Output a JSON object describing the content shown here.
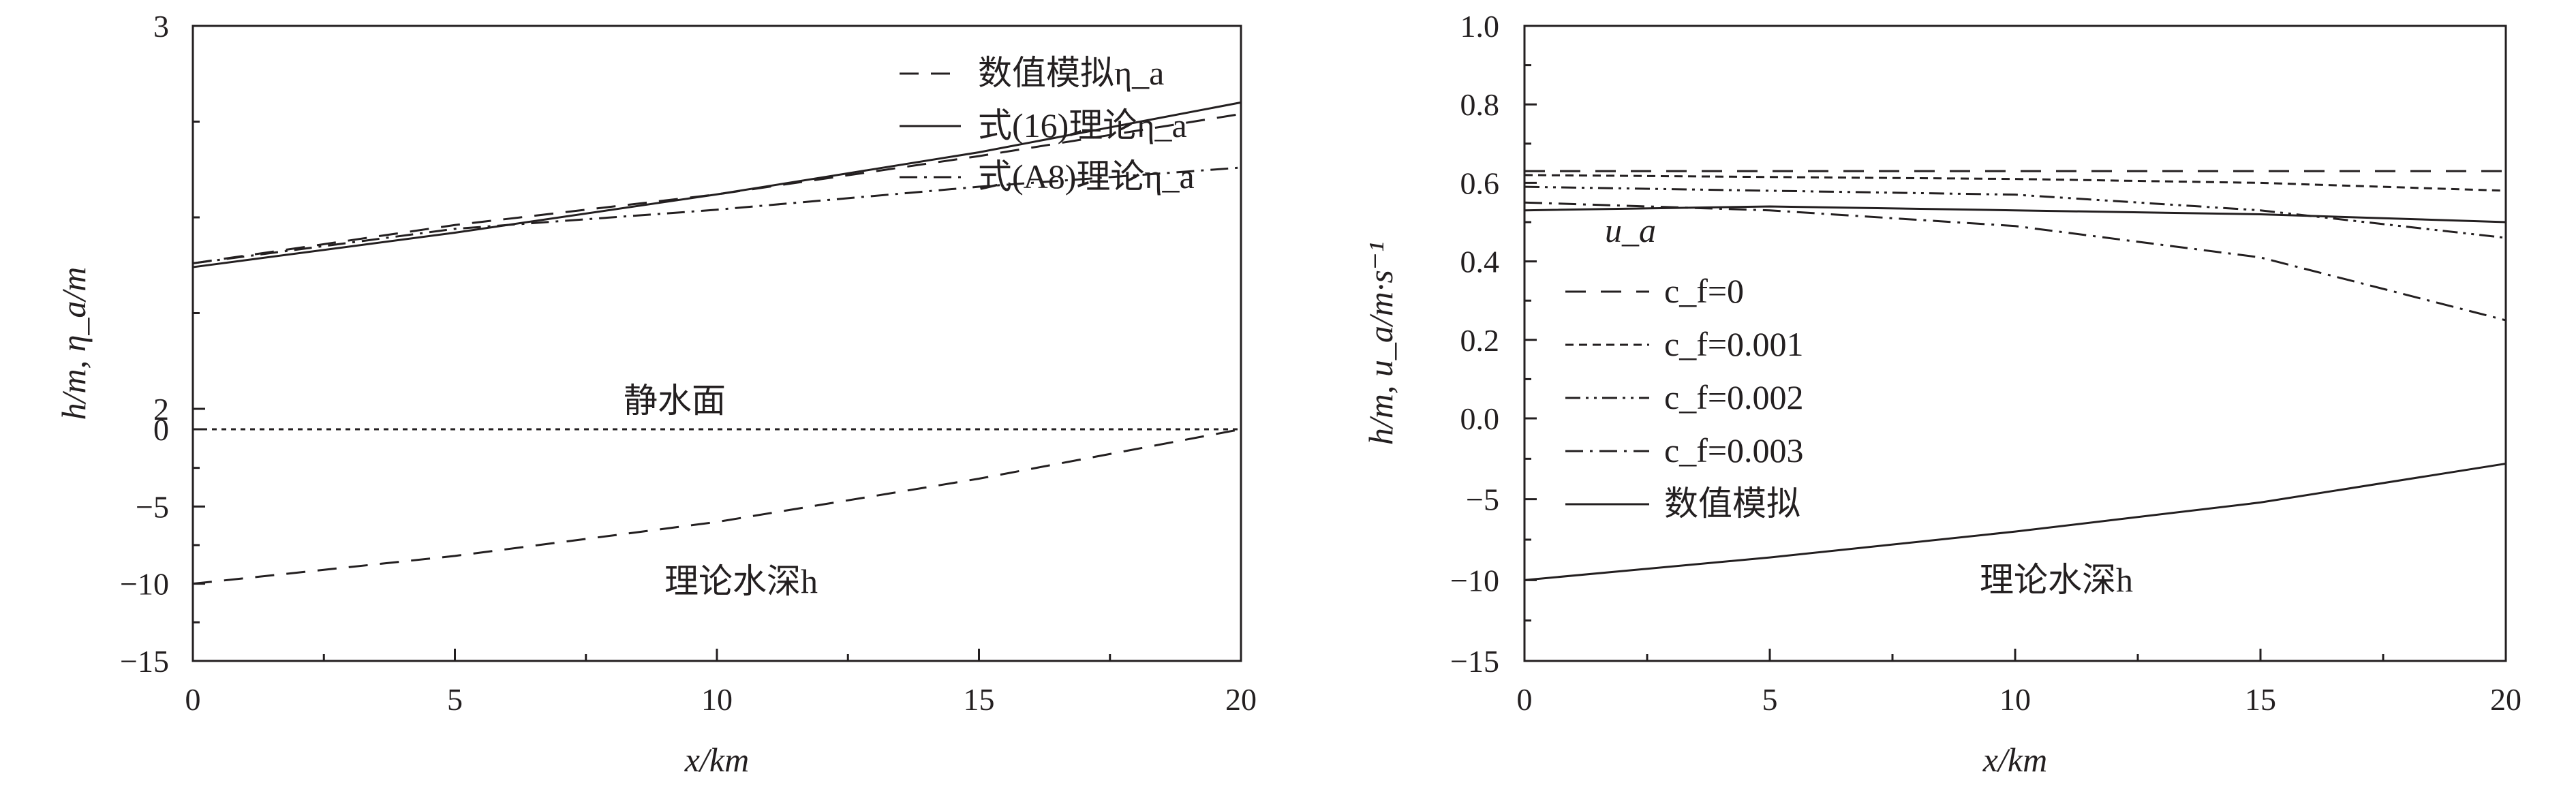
{
  "chart_data": [
    {
      "type": "line",
      "panel": "left",
      "xlabel": "x/km",
      "ylabel": "h/m, η_a/m",
      "xlim": [
        0,
        20
      ],
      "x_ticks": [
        "0",
        "5",
        "10",
        "15",
        "20"
      ],
      "y_ticks_lower": [
        "0",
        "−5",
        "−10",
        "−15"
      ],
      "y_ticks_upper": [
        "2",
        "3"
      ],
      "break": "y-axis broken: bottom section −15 to 0 (depth h), top section 2 to 3 (elevation η_a)",
      "legend_position": "top-right",
      "series": [
        {
          "name": "数值模拟η_a",
          "style": "dashed",
          "x": [
            0,
            5,
            10,
            15,
            20
          ],
          "values": [
            2.38,
            2.48,
            2.56,
            2.66,
            2.77
          ]
        },
        {
          "name": "式(16)理论η_a",
          "style": "solid",
          "x": [
            0,
            5,
            10,
            15,
            20
          ],
          "values": [
            2.37,
            2.46,
            2.56,
            2.67,
            2.8
          ]
        },
        {
          "name": "式(A8)理论η_a",
          "style": "dash-dot",
          "x": [
            0,
            5,
            10,
            15,
            20
          ],
          "values": [
            2.38,
            2.47,
            2.52,
            2.58,
            2.63
          ]
        }
      ],
      "depth_profile": {
        "label": "理论水深h",
        "style": "dashed",
        "x": [
          0,
          5,
          10,
          15,
          20
        ],
        "values": [
          -10.0,
          -8.2,
          -6.0,
          -3.2,
          0.0
        ]
      },
      "still_water": {
        "label": "静水面",
        "style": "dotted",
        "value": 0
      }
    },
    {
      "type": "line",
      "panel": "right",
      "xlabel": "x/km",
      "ylabel": "h/m, u_a/m·s⁻¹",
      "xlim": [
        0,
        20
      ],
      "x_ticks": [
        "0",
        "5",
        "10",
        "15",
        "20"
      ],
      "y_ticks_upper": [
        "1.0",
        "0.8",
        "0.6",
        "0.4",
        "0.2",
        "0.0"
      ],
      "y_ticks_lower": [
        "−5",
        "−10",
        "−15"
      ],
      "break": "y-axis broken: bottom section −15 to 0 (depth h), top section 0.0 to 1.0 (velocity u_a)",
      "annotation": "u_a",
      "legend_position": "middle-left",
      "series": [
        {
          "name": "c_f=0",
          "style": "long-dash",
          "x": [
            0,
            5,
            10,
            15,
            20
          ],
          "values": [
            0.63,
            0.63,
            0.63,
            0.63,
            0.63
          ]
        },
        {
          "name": "c_f=0.001",
          "style": "short-dash",
          "x": [
            0,
            5,
            10,
            15,
            20
          ],
          "values": [
            0.62,
            0.615,
            0.61,
            0.6,
            0.58
          ]
        },
        {
          "name": "c_f=0.002",
          "style": "dash-dot-dot",
          "x": [
            0,
            5,
            10,
            15,
            20
          ],
          "values": [
            0.59,
            0.58,
            0.57,
            0.53,
            0.46
          ]
        },
        {
          "name": "c_f=0.003",
          "style": "dash-dot",
          "x": [
            0,
            5,
            10,
            15,
            20
          ],
          "values": [
            0.55,
            0.53,
            0.49,
            0.41,
            0.25
          ]
        },
        {
          "name": "数值模拟",
          "style": "solid",
          "x": [
            0,
            5,
            10,
            15,
            20
          ],
          "values": [
            0.53,
            0.54,
            0.53,
            0.52,
            0.5
          ]
        }
      ],
      "depth_profile": {
        "label": "理论水深h",
        "style": "solid",
        "x": [
          0,
          5,
          10,
          15,
          20
        ],
        "values": [
          -10.0,
          -8.6,
          -7.0,
          -5.2,
          -2.8
        ]
      }
    }
  ]
}
